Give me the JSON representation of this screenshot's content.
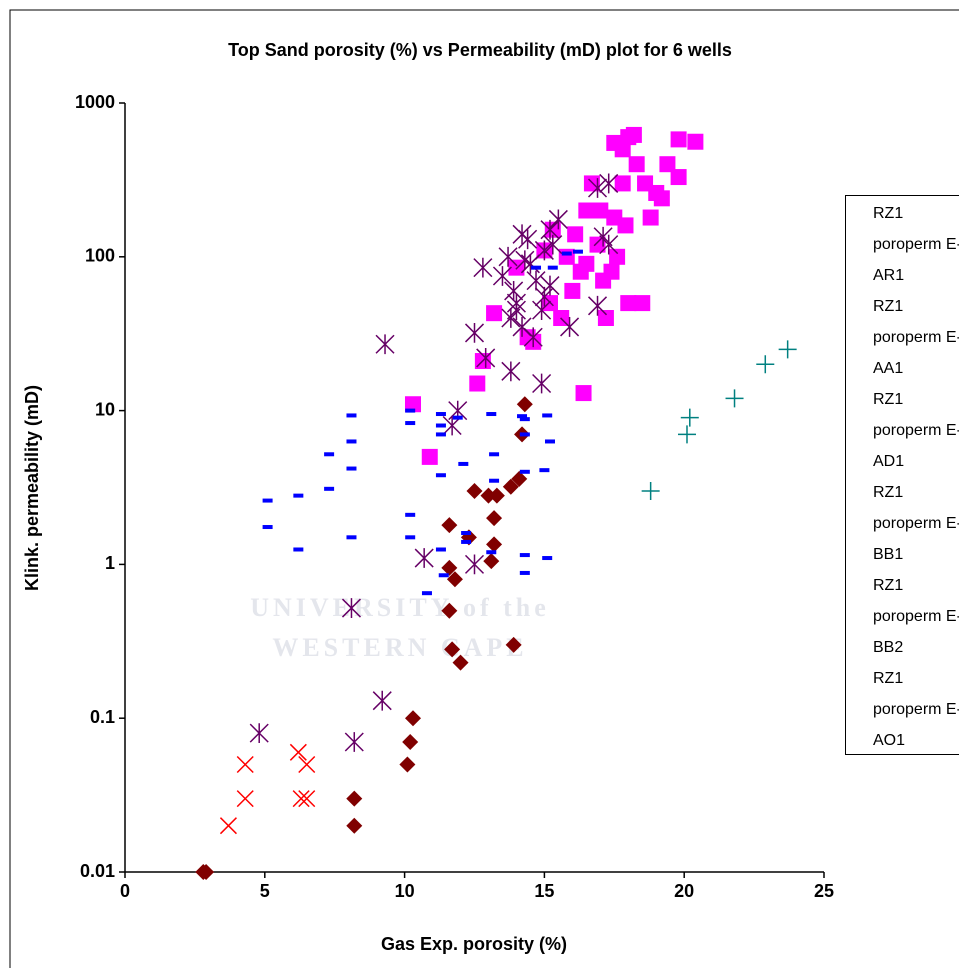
{
  "chart_data": {
    "type": "scatter",
    "title": "Top Sand porosity (%) vs Permeability (mD) plot for 6 wells",
    "x_label": "Gas Exp. porosity (%)",
    "y_label": "Klink. permeability (mD)",
    "watermark": [
      "UNIVERSITY of the",
      "WESTERN CAPE"
    ],
    "xlim": [
      0,
      25
    ],
    "xticks": [
      0,
      5,
      10,
      15,
      20,
      25
    ],
    "ylim": [
      0.01,
      1000
    ],
    "yticks": [
      0.01,
      0.1,
      1,
      10,
      100,
      1000
    ],
    "y_scale": "log",
    "grid": false,
    "legend": "right",
    "series": [
      {
        "name": "RZ1 poroperm E-AR1",
        "color": "#ff00ff",
        "marker": "square",
        "x": [
          10.3,
          10.9,
          12.6,
          12.8,
          13.2,
          16.4,
          14.0,
          14.4,
          14.6,
          15.0,
          15.3,
          15.8,
          16.0,
          16.3,
          16.5,
          16.7,
          16.9,
          17.1,
          17.2,
          17.4,
          17.6,
          17.8,
          18.0,
          18.3,
          17.5,
          17.8,
          18.0,
          18.5,
          18.8,
          19.0,
          19.2,
          19.4,
          19.8,
          19.8,
          20.4,
          18.2,
          17.5,
          17.0,
          16.5,
          15.6,
          15.2,
          16.1,
          17.9,
          18.6
        ],
        "values": [
          11,
          5,
          15,
          21,
          43,
          13,
          85,
          30,
          28,
          110,
          150,
          100,
          60,
          80,
          200,
          300,
          120,
          70,
          40,
          80,
          100,
          500,
          600,
          400,
          180,
          300,
          50,
          50,
          180,
          260,
          240,
          400,
          330,
          580,
          560,
          620,
          550,
          200,
          90,
          40,
          50,
          140,
          160,
          300
        ]
      },
      {
        "name": "RZ1 poroperm E-AA1",
        "color": "#ff0000",
        "marker": "x",
        "x": [
          3.7,
          4.3,
          4.3,
          6.2,
          6.3,
          6.5,
          6.5
        ],
        "values": [
          0.02,
          0.03,
          0.05,
          0.06,
          0.03,
          0.03,
          0.05
        ]
      },
      {
        "name": "RZ1 poroperm E-AD1",
        "color": "#660066",
        "marker": "star",
        "x": [
          4.8,
          8.2,
          9.2,
          8.1,
          10.7,
          12.5,
          9.3,
          11.7,
          11.9,
          12.9,
          13.8,
          14.9,
          12.5,
          12.8,
          13.5,
          13.7,
          14.0,
          14.2,
          14.4,
          14.5,
          13.8,
          14.2,
          14.6,
          14.9,
          15.0,
          15.2,
          15.3,
          15.2,
          15.5,
          15.9,
          16.9,
          16.9,
          17.3,
          17.3,
          17.1,
          14.0,
          14.7,
          15.0,
          14.3,
          13.9
        ],
        "values": [
          0.08,
          0.07,
          0.13,
          0.52,
          1.1,
          1.0,
          27,
          8,
          10,
          22,
          18,
          15,
          32,
          85,
          75,
          100,
          50,
          140,
          130,
          90,
          40,
          35,
          30,
          45,
          55,
          65,
          120,
          150,
          175,
          35,
          48,
          280,
          300,
          120,
          135,
          45,
          70,
          110,
          95,
          60
        ]
      },
      {
        "name": "RZ1 poroperm E-BB1",
        "color": "#800000",
        "marker": "diamond",
        "x": [
          2.8,
          2.9,
          8.2,
          8.2,
          10.1,
          10.2,
          10.3,
          11.6,
          11.7,
          12.0,
          11.8,
          11.6,
          11.6,
          12.3,
          12.5,
          13.0,
          13.1,
          13.2,
          13.2,
          13.3,
          13.8,
          14.1,
          14.2,
          14.3,
          13.9
        ],
        "values": [
          0.01,
          0.01,
          0.03,
          0.02,
          0.05,
          0.07,
          0.1,
          0.5,
          0.28,
          0.23,
          0.8,
          0.95,
          1.8,
          1.5,
          3.0,
          2.8,
          1.05,
          1.35,
          2.0,
          2.8,
          3.2,
          3.6,
          7,
          11,
          0.3
        ]
      },
      {
        "name": "RZ1 poroperm E-BB2",
        "color": "#008080",
        "marker": "plus",
        "x": [
          18.8,
          20.1,
          20.2,
          21.8,
          22.9,
          23.7
        ],
        "values": [
          3,
          7,
          9,
          12,
          20,
          25
        ]
      },
      {
        "name": "RZ1 poroperm E-AO1",
        "color": "#0000ff",
        "marker": "dash",
        "x": [
          5.1,
          5.1,
          6.2,
          6.2,
          7.3,
          7.3,
          8.1,
          8.1,
          8.1,
          8.1,
          10.2,
          10.2,
          10.2,
          10.2,
          11.3,
          11.3,
          11.3,
          11.3,
          11.3,
          11.4,
          11.9,
          12.1,
          12.2,
          12.2,
          10.8,
          13.1,
          13.2,
          13.2,
          13.1,
          14.2,
          14.3,
          14.3,
          14.3,
          14.3,
          14.3,
          15.1,
          15.2,
          15.0,
          15.1,
          14.7,
          15.3,
          15.8,
          16.2
        ],
        "values": [
          2.6,
          1.75,
          2.8,
          1.25,
          3.1,
          5.2,
          9.3,
          6.3,
          4.2,
          1.5,
          10,
          8.3,
          2.1,
          1.5,
          9.5,
          8,
          7,
          3.8,
          1.25,
          0.85,
          9,
          4.5,
          1.6,
          1.4,
          0.65,
          9.5,
          5.2,
          3.5,
          1.2,
          9.2,
          8.8,
          7,
          4,
          1.15,
          0.88,
          9.3,
          6.3,
          4.1,
          1.1,
          85,
          85,
          105,
          108
        ]
      }
    ]
  }
}
